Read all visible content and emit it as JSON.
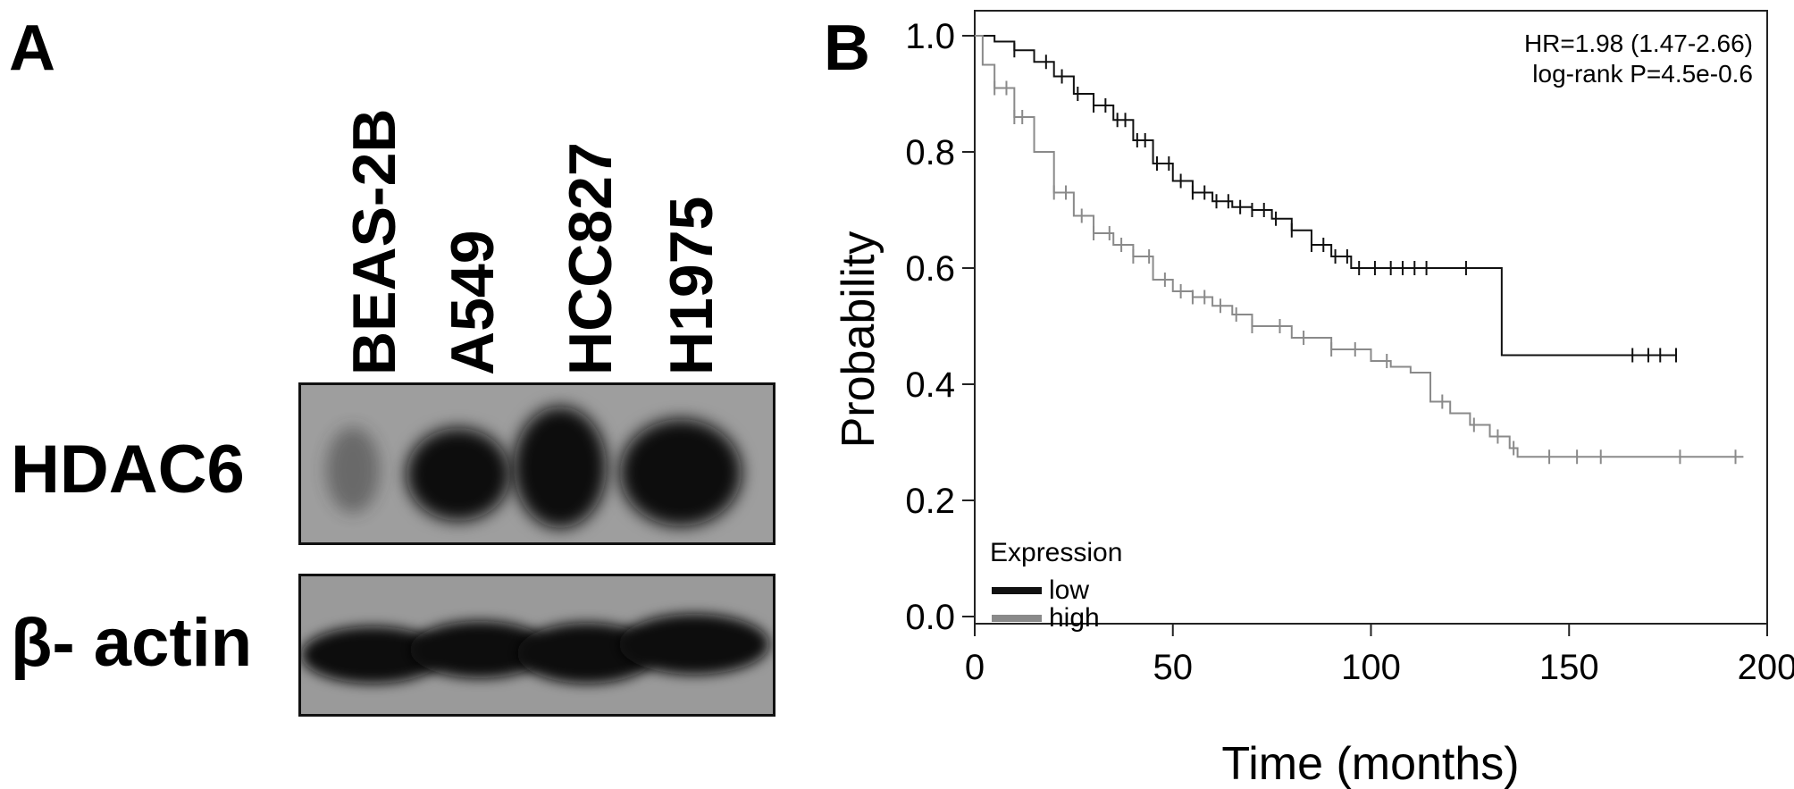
{
  "panel_a": {
    "letter": "A",
    "lanes": [
      "BEAS-2B",
      "A549",
      "HCC827",
      "H1975"
    ],
    "rows": [
      {
        "label": "HDAC6",
        "intensities": [
          0.35,
          0.9,
          1.0,
          0.95
        ]
      },
      {
        "label": "β- actin",
        "intensities": [
          1.0,
          1.0,
          1.0,
          1.0
        ]
      }
    ]
  },
  "panel_b": {
    "letter": "B",
    "annotation_line1": "HR=1.98 (1.47-2.66)",
    "annotation_line2": "log-rank P=4.5e-0.6",
    "legend_title": "Expression",
    "legend_location": "bottom-left",
    "colors": {
      "low": "#111111",
      "high": "#8a8a8a"
    }
  },
  "chart_data": {
    "type": "line",
    "title": "",
    "xlabel": "Time (months)",
    "ylabel": "Probability",
    "xlim": [
      0,
      200
    ],
    "ylim": [
      0,
      1.0
    ],
    "xticks": [
      "0",
      "50",
      "100",
      "150",
      "200"
    ],
    "yticks": [
      "0.0",
      "0.2",
      "0.4",
      "0.6",
      "0.8",
      "1.0"
    ],
    "grid": false,
    "series": [
      {
        "name": "low",
        "x": [
          0,
          5,
          10,
          15,
          20,
          25,
          30,
          35,
          40,
          45,
          50,
          55,
          60,
          65,
          70,
          75,
          80,
          85,
          90,
          95,
          100,
          110,
          120,
          130,
          133,
          133,
          140,
          150,
          160,
          170,
          177
        ],
        "y": [
          1.0,
          0.99,
          0.975,
          0.955,
          0.93,
          0.9,
          0.88,
          0.855,
          0.82,
          0.78,
          0.75,
          0.73,
          0.715,
          0.705,
          0.7,
          0.685,
          0.665,
          0.64,
          0.62,
          0.6,
          0.6,
          0.6,
          0.6,
          0.6,
          0.6,
          0.45,
          0.45,
          0.45,
          0.45,
          0.45,
          0.45
        ],
        "censored_x": [
          10,
          18,
          22,
          26,
          30,
          33,
          36,
          38,
          41,
          43,
          46,
          49,
          52,
          55,
          58,
          61,
          64,
          67,
          70,
          73,
          76,
          80,
          85,
          88,
          91,
          94,
          97,
          101,
          105,
          108,
          111,
          114,
          124,
          166,
          170,
          173,
          177
        ]
      },
      {
        "name": "high",
        "x": [
          0,
          2,
          5,
          10,
          15,
          20,
          25,
          30,
          35,
          40,
          45,
          50,
          55,
          60,
          65,
          70,
          80,
          90,
          100,
          105,
          110,
          115,
          120,
          125,
          130,
          135,
          137,
          150,
          170,
          194
        ],
        "y": [
          1.0,
          0.95,
          0.91,
          0.86,
          0.8,
          0.73,
          0.69,
          0.66,
          0.64,
          0.62,
          0.58,
          0.56,
          0.55,
          0.535,
          0.52,
          0.5,
          0.48,
          0.46,
          0.44,
          0.43,
          0.42,
          0.37,
          0.35,
          0.33,
          0.31,
          0.29,
          0.275,
          0.275,
          0.275,
          0.275
        ],
        "censored_x": [
          5,
          8,
          10,
          12,
          20,
          23,
          27,
          30,
          34,
          37,
          40,
          44,
          48,
          52,
          55,
          58,
          62,
          66,
          70,
          77,
          83,
          90,
          96,
          104,
          118,
          126,
          132,
          136,
          145,
          152,
          158,
          178,
          192
        ]
      }
    ]
  }
}
